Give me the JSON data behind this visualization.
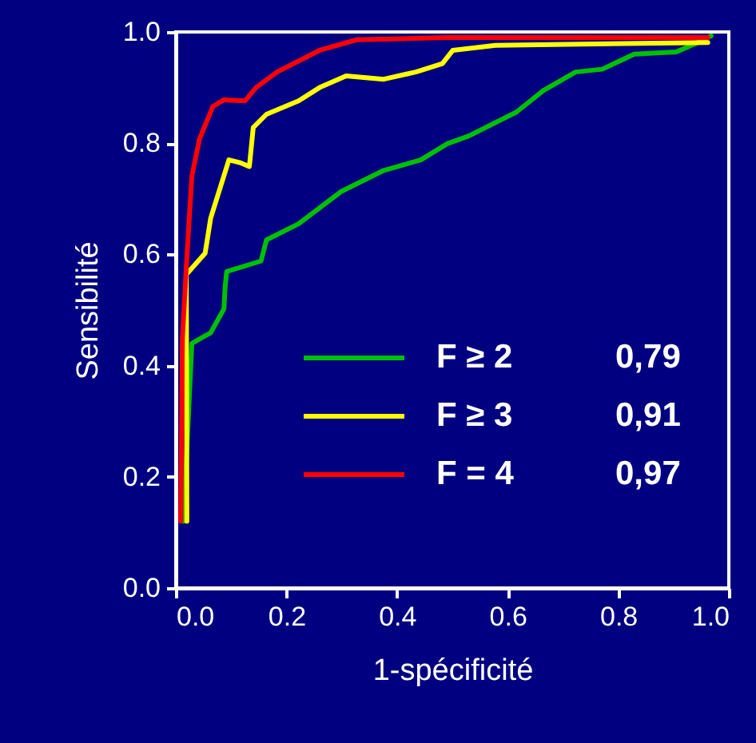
{
  "chart_data": {
    "type": "line",
    "xlabel": "1-spécificité",
    "ylabel": "Sensibilité",
    "xlim": [
      0,
      1
    ],
    "ylim": [
      0,
      1
    ],
    "xticks": [
      {
        "value": 0,
        "label": "0.0"
      },
      0.2,
      0.4,
      0.6,
      0.8,
      {
        "value": 1,
        "label": "1.0"
      }
    ],
    "yticks": [
      {
        "value": 0,
        "label": "0.0"
      },
      0.2,
      0.4,
      0.6,
      0.8,
      {
        "value": 1,
        "label": "1.0"
      }
    ],
    "grid": false,
    "legend": "bottom",
    "line_style": "solid",
    "marker": "none",
    "series": [
      {
        "name": "F ≥ 2",
        "color": "#00c000",
        "x": [
          0.014,
          0.029,
          0.063,
          0.087,
          0.089,
          0.092,
          0.154,
          0.164,
          0.222,
          0.299,
          0.376,
          0.443,
          0.491,
          0.53,
          0.616,
          0.665,
          0.723,
          0.771,
          0.829,
          0.905,
          0.944,
          0.968
        ],
        "values": [
          0.12,
          0.44,
          0.459,
          0.502,
          0.54,
          0.569,
          0.588,
          0.626,
          0.655,
          0.713,
          0.751,
          0.77,
          0.799,
          0.813,
          0.856,
          0.895,
          0.928,
          0.933,
          0.96,
          0.964,
          0.981,
          0.993
        ]
      },
      {
        "name": "F ≥ 3",
        "color": "#ffff00",
        "x": [
          0.02,
          0.019,
          0.053,
          0.063,
          0.096,
          0.116,
          0.133,
          0.14,
          0.164,
          0.222,
          0.26,
          0.308,
          0.376,
          0.434,
          0.482,
          0.501,
          0.578,
          0.962
        ],
        "values": [
          0.12,
          0.564,
          0.602,
          0.665,
          0.77,
          0.765,
          0.758,
          0.828,
          0.852,
          0.876,
          0.9,
          0.921,
          0.915,
          0.928,
          0.943,
          0.967,
          0.976,
          0.981
        ]
      },
      {
        "name": "F = 4",
        "color": "#ff0000",
        "x": [
          0.009,
          0.012,
          0.019,
          0.029,
          0.043,
          0.067,
          0.087,
          0.125,
          0.145,
          0.183,
          0.26,
          0.327,
          0.491,
          0.962
        ],
        "values": [
          0.12,
          0.45,
          0.578,
          0.741,
          0.808,
          0.866,
          0.878,
          0.876,
          0.9,
          0.928,
          0.967,
          0.986,
          0.99,
          0.99
        ]
      }
    ],
    "annotations": [
      "0,79",
      "0,91",
      "0,97"
    ]
  }
}
